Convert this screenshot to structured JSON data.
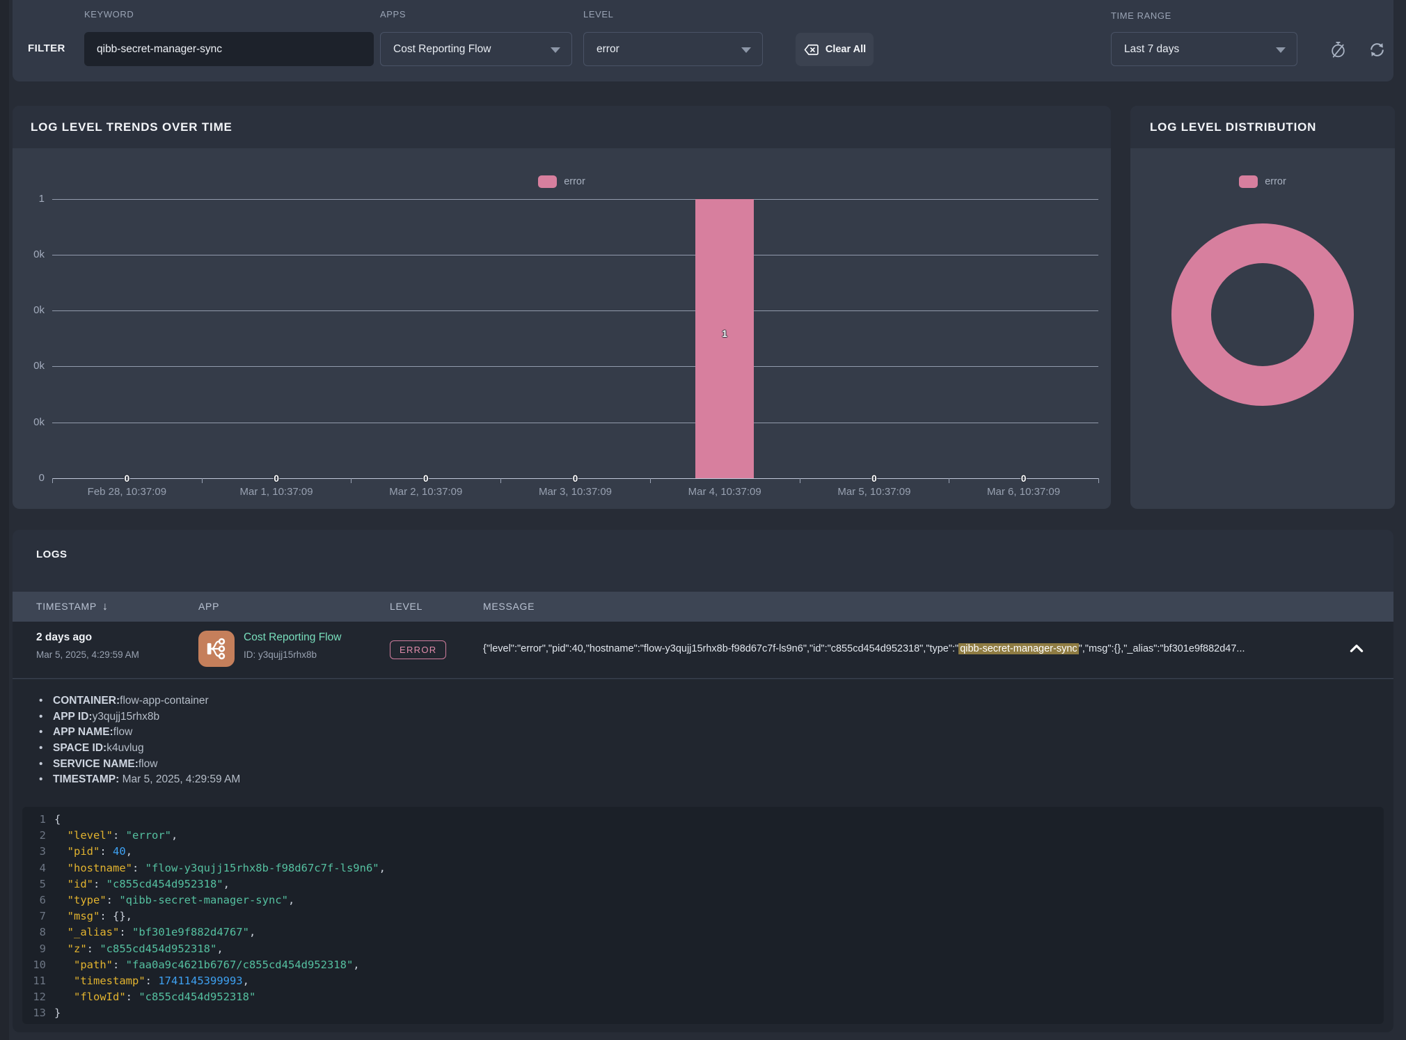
{
  "filter": {
    "title": "FILTER",
    "keyword": {
      "label": "KEYWORD",
      "value": "qibb-secret-manager-sync"
    },
    "apps": {
      "label": "APPS",
      "value": "Cost Reporting Flow"
    },
    "level": {
      "label": "LEVEL",
      "value": "error"
    },
    "clear_all_label": "Clear All",
    "time_range": {
      "label": "TIME RANGE",
      "value": "Last 7 days"
    }
  },
  "trends": {
    "title": "LOG LEVEL TRENDS OVER TIME",
    "legend": "error",
    "y_ticks": [
      "1",
      "0k",
      "0k",
      "0k",
      "0k",
      "0"
    ],
    "x_ticks": [
      "Feb 28, 10:37:09",
      "Mar 1, 10:37:09",
      "Mar 2, 10:37:09",
      "Mar 3, 10:37:09",
      "Mar 4, 10:37:09",
      "Mar 5, 10:37:09",
      "Mar 6, 10:37:09"
    ],
    "values": [
      0,
      0,
      0,
      0,
      1,
      0,
      0
    ],
    "zero_label": "0",
    "bar_label": "1",
    "bar_color": "#d77f9e"
  },
  "distribution": {
    "title": "LOG LEVEL DISTRIBUTION",
    "legend": "error",
    "color": "#d77f9e"
  },
  "logs": {
    "title": "LOGS",
    "columns": [
      "TIMESTAMP",
      "APP",
      "LEVEL",
      "MESSAGE"
    ],
    "sort_arrow": "↓",
    "row": {
      "time_relative": "2 days ago",
      "time_absolute": "Mar 5, 2025, 4:29:59 AM",
      "app_name": "Cost Reporting Flow",
      "app_id": "ID: y3qujj15rhx8b",
      "level": "ERROR",
      "message_pre": "{\"level\":\"error\",\"pid\":40,\"hostname\":\"flow-y3qujj15rhx8b-f98d67c7f-ls9n6\",\"id\":\"c855cd454d952318\",\"type\":\"",
      "message_highlight": "qibb-secret-manager-sync",
      "message_post": "\",\"msg\":{},\"_alias\":\"bf301e9f882d47..."
    },
    "details": [
      {
        "label": "CONTAINER:",
        "value": "flow-app-container"
      },
      {
        "label": "APP ID:",
        "value": "y3qujj15rhx8b"
      },
      {
        "label": "APP NAME:",
        "value": "flow"
      },
      {
        "label": "SPACE ID:",
        "value": "k4uvlug"
      },
      {
        "label": "SERVICE NAME:",
        "value": "flow"
      },
      {
        "label": "TIMESTAMP:",
        "value": " Mar 5, 2025, 4:29:59 AM"
      }
    ],
    "code_lines": [
      [
        [
          "p",
          "{"
        ]
      ],
      [
        [
          "p",
          "  "
        ],
        [
          "k",
          "\"level\""
        ],
        [
          "p",
          ": "
        ],
        [
          "s",
          "\"error\""
        ],
        [
          "p",
          ","
        ]
      ],
      [
        [
          "p",
          "  "
        ],
        [
          "k",
          "\"pid\""
        ],
        [
          "p",
          ": "
        ],
        [
          "n",
          "40"
        ],
        [
          "p",
          ","
        ]
      ],
      [
        [
          "p",
          "  "
        ],
        [
          "k",
          "\"hostname\""
        ],
        [
          "p",
          ": "
        ],
        [
          "s",
          "\"flow-y3qujj15rhx8b-f98d67c7f-ls9n6\""
        ],
        [
          "p",
          ","
        ]
      ],
      [
        [
          "p",
          "  "
        ],
        [
          "k",
          "\"id\""
        ],
        [
          "p",
          ": "
        ],
        [
          "s",
          "\"c855cd454d952318\""
        ],
        [
          "p",
          ","
        ]
      ],
      [
        [
          "p",
          "  "
        ],
        [
          "k",
          "\"type\""
        ],
        [
          "p",
          ": "
        ],
        [
          "s",
          "\"qibb-secret-manager-sync\""
        ],
        [
          "p",
          ","
        ]
      ],
      [
        [
          "p",
          "  "
        ],
        [
          "k",
          "\"msg\""
        ],
        [
          "p",
          ": "
        ],
        [
          "p",
          "{},"
        ]
      ],
      [
        [
          "p",
          "  "
        ],
        [
          "k",
          "\"_alias\""
        ],
        [
          "p",
          ": "
        ],
        [
          "s",
          "\"bf301e9f882d4767\""
        ],
        [
          "p",
          ","
        ]
      ],
      [
        [
          "p",
          "  "
        ],
        [
          "k",
          "\"z\""
        ],
        [
          "p",
          ": "
        ],
        [
          "s",
          "\"c855cd454d952318\""
        ],
        [
          "p",
          ","
        ]
      ],
      [
        [
          "p",
          "   "
        ],
        [
          "k",
          "\"path\""
        ],
        [
          "p",
          ": "
        ],
        [
          "s",
          "\"faa0a9c4621b6767/c855cd454d952318\""
        ],
        [
          "p",
          ","
        ]
      ],
      [
        [
          "p",
          "   "
        ],
        [
          "k",
          "\"timestamp\""
        ],
        [
          "p",
          ": "
        ],
        [
          "n",
          "1741145399993"
        ],
        [
          "p",
          ","
        ]
      ],
      [
        [
          "p",
          "   "
        ],
        [
          "k",
          "\"flowId\""
        ],
        [
          "p",
          ": "
        ],
        [
          "s",
          "\"c855cd454d952318\""
        ]
      ],
      [
        [
          "p",
          "}"
        ]
      ]
    ]
  },
  "chart_data": [
    {
      "type": "bar",
      "title": "LOG LEVEL TRENDS OVER TIME",
      "categories": [
        "Feb 28, 10:37:09",
        "Mar 1, 10:37:09",
        "Mar 2, 10:37:09",
        "Mar 3, 10:37:09",
        "Mar 4, 10:37:09",
        "Mar 5, 10:37:09",
        "Mar 6, 10:37:09"
      ],
      "series": [
        {
          "name": "error",
          "values": [
            0,
            0,
            0,
            0,
            1,
            0,
            0
          ]
        }
      ],
      "ylim": [
        0,
        1
      ],
      "y_tick_labels": [
        "0",
        "0k",
        "0k",
        "0k",
        "0k",
        "1"
      ],
      "grid": true,
      "legend_position": "top",
      "bar_color": "#d77f9e"
    },
    {
      "type": "pie",
      "title": "LOG LEVEL DISTRIBUTION",
      "categories": [
        "error"
      ],
      "values": [
        1
      ],
      "donut": true,
      "colors": [
        "#d77f9e"
      ],
      "legend_position": "top"
    }
  ]
}
